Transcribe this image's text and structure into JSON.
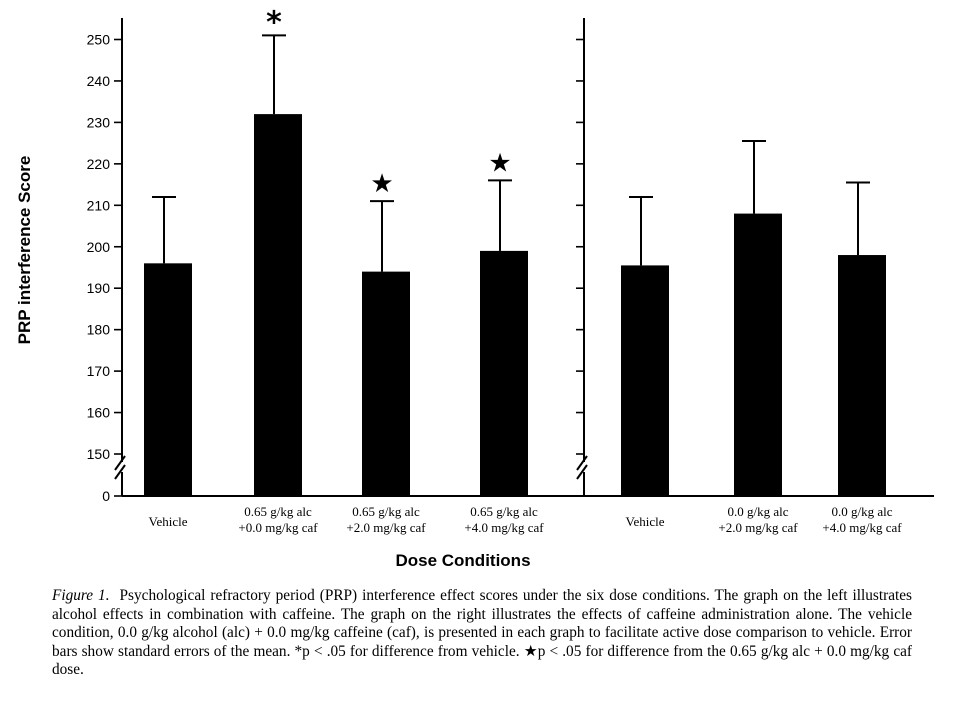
{
  "chart_data": [
    {
      "type": "bar",
      "categories": [
        [
          "Vehicle"
        ],
        [
          "0.65 g/kg alc",
          "+0.0 mg/kg caf"
        ],
        [
          "0.65 g/kg alc",
          "+2.0 mg/kg caf"
        ],
        [
          "0.65 g/kg alc",
          "+4.0 mg/kg caf"
        ]
      ],
      "values": [
        196,
        232,
        194,
        199
      ],
      "error_bars": [
        212,
        251,
        211,
        216
      ],
      "markers": [
        "",
        "*",
        "★",
        "★"
      ],
      "bar_color": "#000000",
      "ylim": [
        145,
        255
      ],
      "axis_break": true
    },
    {
      "type": "bar",
      "categories": [
        [
          "Vehicle"
        ],
        [
          "0.0 g/kg alc",
          "+2.0 mg/kg caf"
        ],
        [
          "0.0 g/kg alc",
          "+4.0 mg/kg caf"
        ]
      ],
      "values": [
        195.5,
        208,
        198
      ],
      "error_bars": [
        212,
        225.5,
        215.5
      ],
      "markers": [
        "",
        "",
        ""
      ],
      "bar_color": "#000000",
      "ylim": [
        145,
        255
      ],
      "axis_break": true
    }
  ],
  "axes": {
    "ylabel": "PRP interference Score",
    "xlabel": "Dose Conditions",
    "y_ticks": [
      150,
      160,
      170,
      180,
      190,
      200,
      210,
      220,
      230,
      240,
      250
    ],
    "y_zero_label": "0"
  },
  "caption": {
    "label": "Figure 1.",
    "text": "Psychological refractory period (PRP) interference effect scores under the six dose conditions. The graph on the left illustrates alcohol effects in combination with caffeine. The graph on the right illustrates the effects of caffeine administration alone. The vehicle condition, 0.0 g/kg alcohol (alc) + 0.0 mg/kg caffeine (caf), is presented in each graph to facilitate active dose comparison to vehicle. Error bars show standard errors of the mean. *p < .05 for difference from vehicle. ★p < .05 for difference from the 0.65 g/kg alc + 0.0 mg/kg caf dose."
  }
}
